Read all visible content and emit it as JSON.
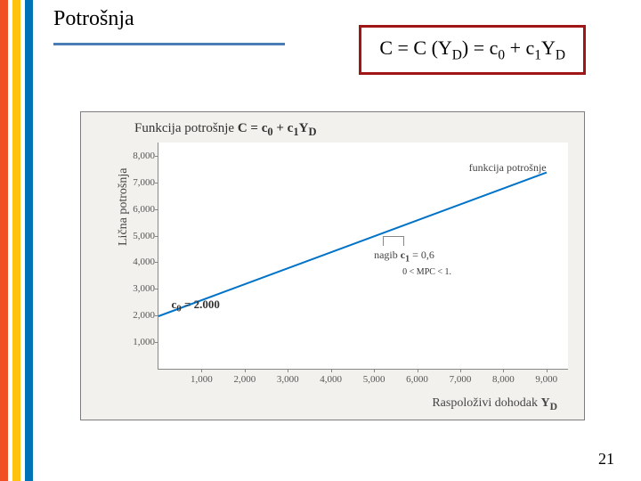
{
  "bars": {
    "colors": [
      "#f04e23",
      "#ffffff",
      "#ffc20e",
      "#ffffff",
      "#0073b6"
    ],
    "widths": [
      9,
      5,
      9,
      5,
      9
    ]
  },
  "title": "Potrošnja",
  "hr_color": "#4a7db5",
  "equation": {
    "parts": [
      "C = C (Y",
      "D",
      ")  = c",
      "0",
      " + c",
      "1",
      "Y",
      "D"
    ],
    "border_color": "#a01515"
  },
  "figure": {
    "bg": "#f2f1ed",
    "title_prefix": "Funkcija potrošnje  ",
    "title_eq": "C = c₀ + c₁Y_D",
    "plot_bg": "#ffffff",
    "axis_color": "#888888",
    "chart": {
      "type": "line",
      "xlim": [
        0,
        9500
      ],
      "ylim": [
        0,
        8500
      ],
      "xtick_vals": [
        1000,
        2000,
        3000,
        4000,
        5000,
        6000,
        7000,
        8000,
        9000
      ],
      "xtick_labels": [
        "1,000",
        "2,000",
        "3,000",
        "4,000",
        "5,000",
        "6,000",
        "7,000",
        "8,000",
        "9,000"
      ],
      "ytick_vals": [
        1000,
        2000,
        3000,
        4000,
        5000,
        6000,
        7000,
        8000
      ],
      "ytick_labels": [
        "1,000",
        "2,000",
        "3,000",
        "4,000",
        "5,000",
        "6,000",
        "7,000",
        "8,000"
      ],
      "line_color": "#0073c8",
      "line_width": 2,
      "intercept": 2000,
      "slope": 0.6,
      "x_start": 0,
      "x_end": 9000
    },
    "ylabel": "Lična potrošnja",
    "xlabel_prefix": "Raspoloživi dohodak ",
    "xlabel_bold": "Y_D",
    "annot_func": "funkcija potrošnje",
    "annot_nagib": "nagib c₁ = 0,6",
    "annot_mpc": "0 < MPC < 1.",
    "annot_c0": "c₀ = 2.000",
    "tick_fontsize": 11,
    "label_fontsize": 14,
    "annot_fontsize": 12
  },
  "page_number": "21"
}
